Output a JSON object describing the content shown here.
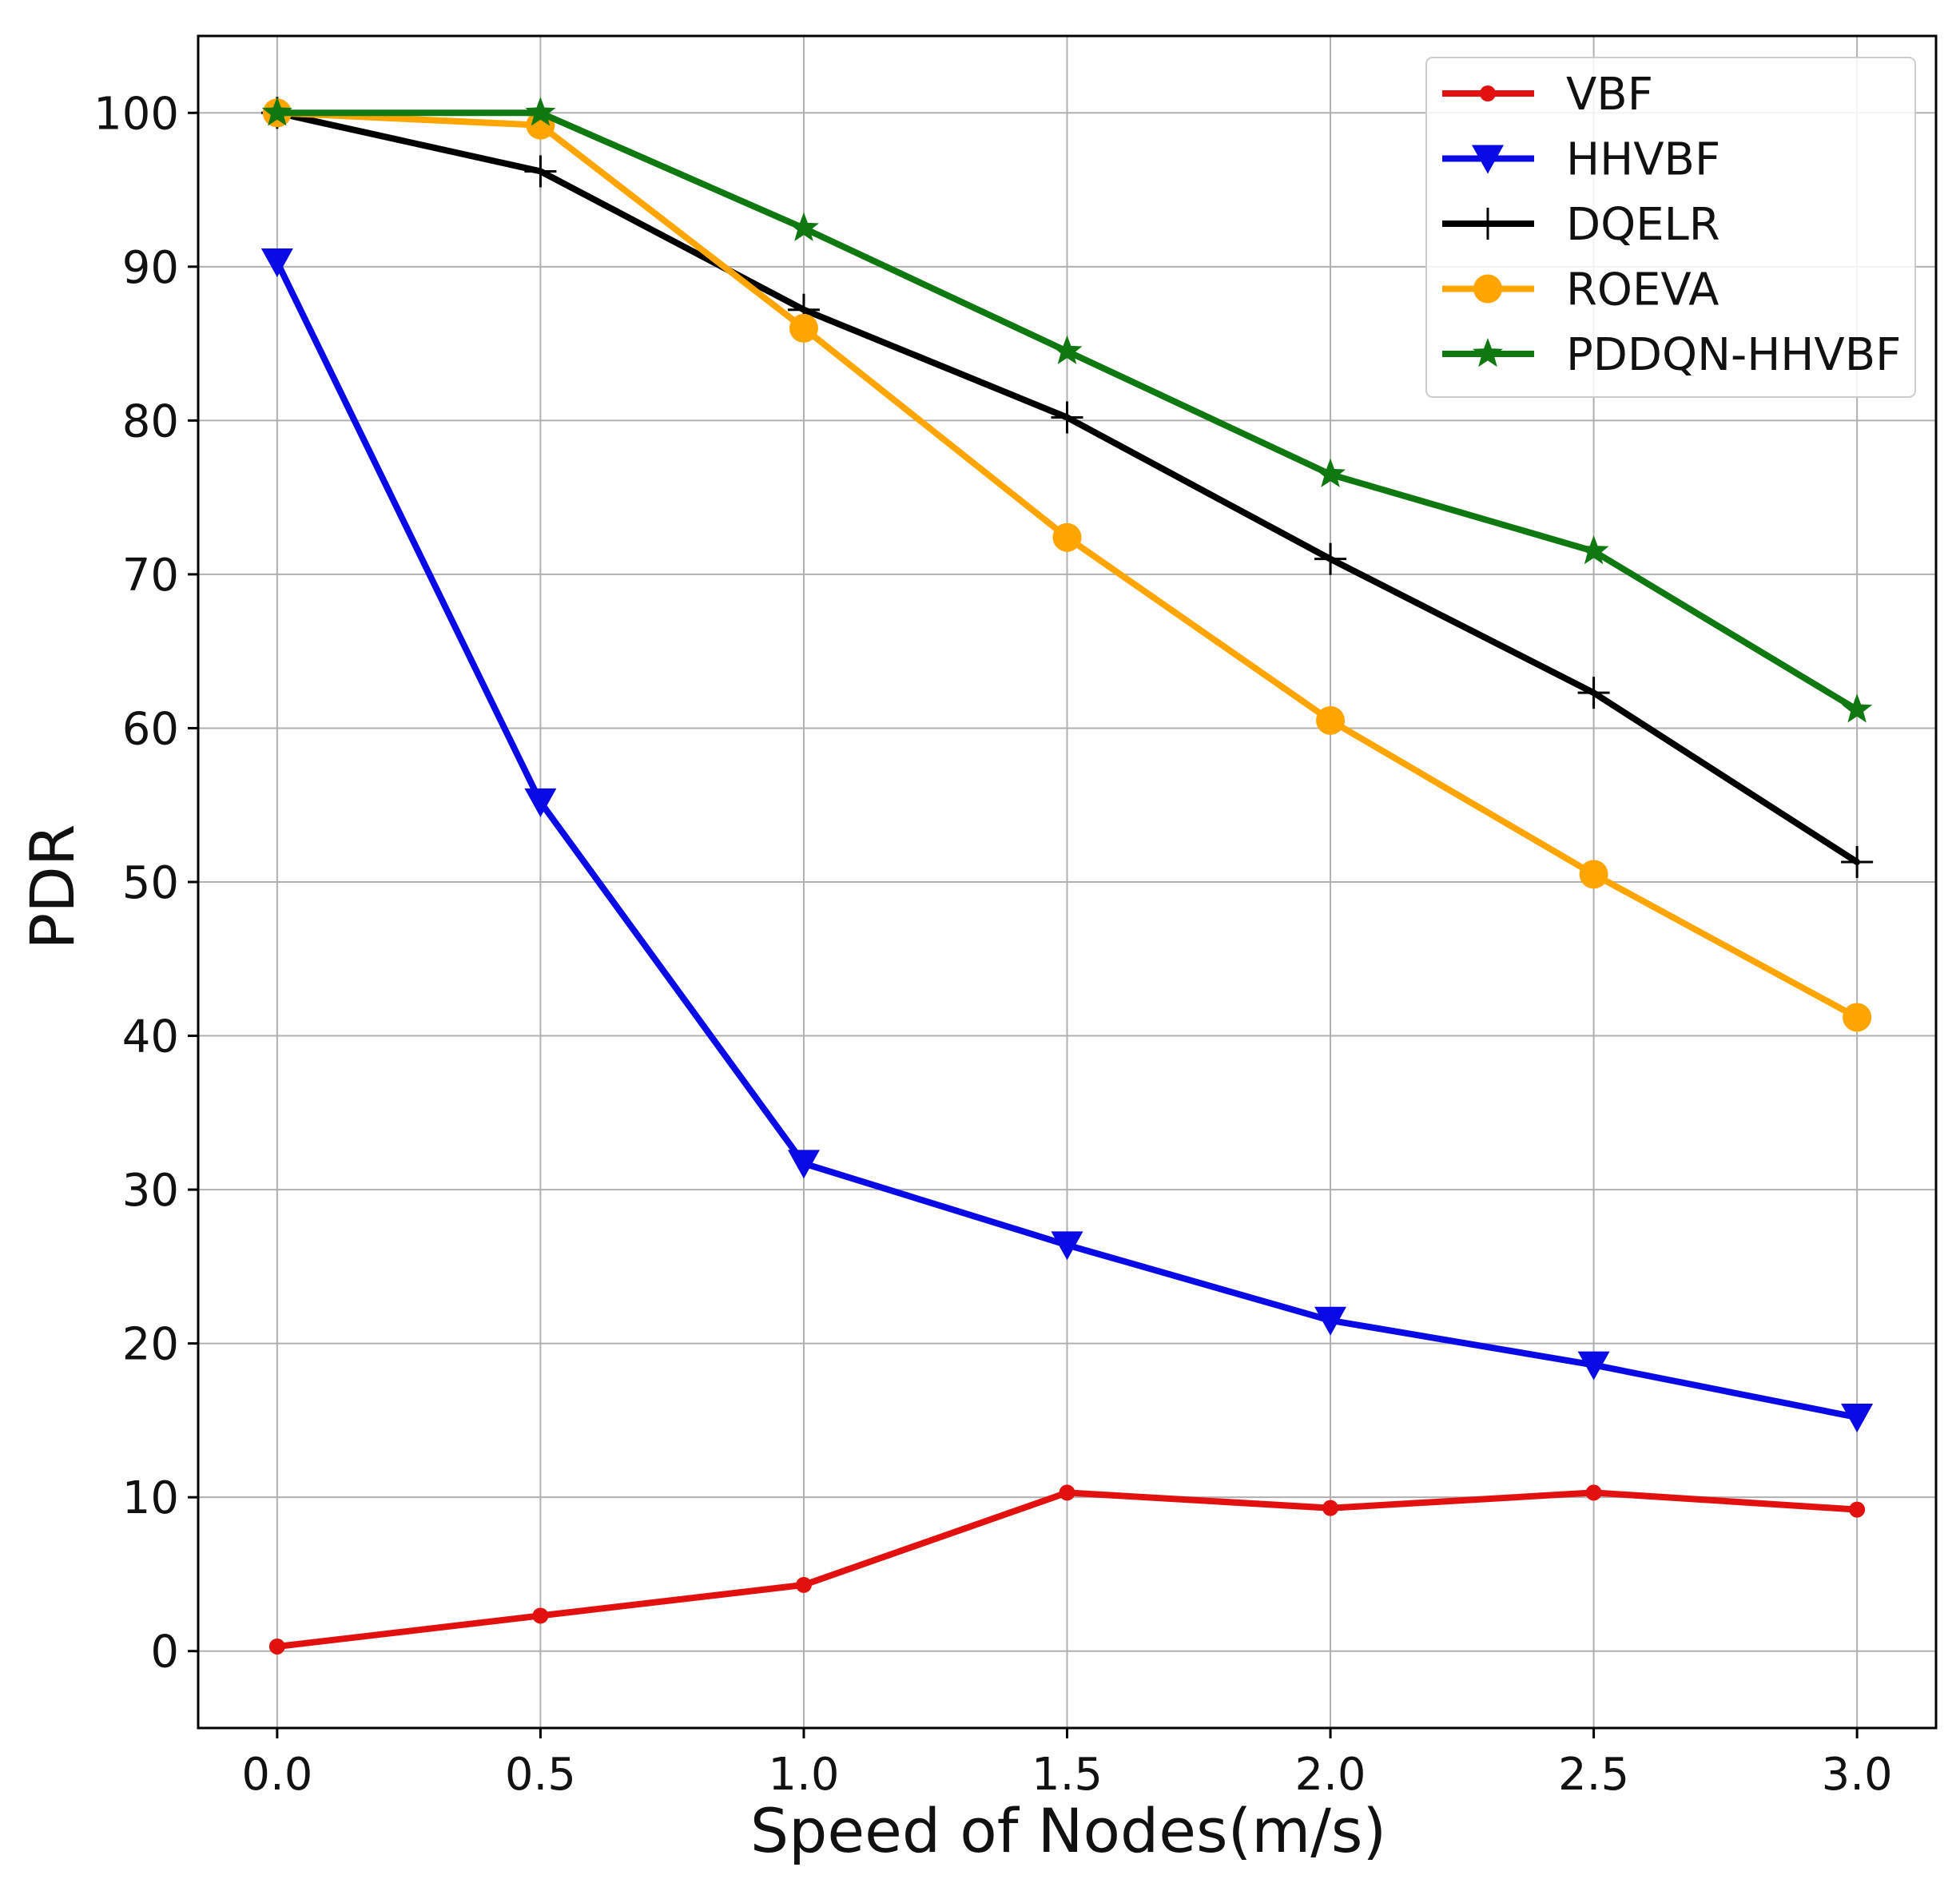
{
  "chart_data": {
    "type": "line",
    "title": "",
    "xlabel": "Speed of Nodes(m/s)",
    "ylabel": "PDR",
    "xlim": [
      -0.15,
      3.15
    ],
    "ylim": [
      -5,
      105
    ],
    "xticks": [
      0.0,
      0.5,
      1.0,
      1.5,
      2.0,
      2.5,
      3.0
    ],
    "xtick_labels": [
      "0.0",
      "0.5",
      "1.0",
      "1.5",
      "2.0",
      "2.5",
      "3.0"
    ],
    "yticks": [
      0,
      10,
      20,
      30,
      40,
      50,
      60,
      70,
      80,
      90,
      100
    ],
    "ytick_labels": [
      "0",
      "10",
      "20",
      "30",
      "40",
      "50",
      "60",
      "70",
      "80",
      "90",
      "100"
    ],
    "grid": true,
    "legend_position": "top-right",
    "x": [
      0.0,
      0.5,
      1.0,
      1.5,
      2.0,
      2.5,
      3.0
    ],
    "series": [
      {
        "name": "VBF",
        "color": "#e31010",
        "marker": "circle-small",
        "values": [
          0.3,
          2.3,
          4.3,
          10.3,
          9.3,
          10.3,
          9.2
        ]
      },
      {
        "name": "HHVBF",
        "color": "#0a0ae6",
        "marker": "triangle-down",
        "values": [
          90.3,
          55.2,
          31.7,
          26.4,
          21.5,
          18.6,
          15.2
        ]
      },
      {
        "name": "DQELR",
        "color": "#000000",
        "marker": "plus",
        "values": [
          100.0,
          96.2,
          87.2,
          80.2,
          71.0,
          62.3,
          51.3
        ]
      },
      {
        "name": "ROEVA",
        "color": "#ffa500",
        "marker": "circle-large",
        "values": [
          100.0,
          99.2,
          86.0,
          72.4,
          60.5,
          50.5,
          41.2
        ]
      },
      {
        "name": "PDDQN-HHVBF",
        "color": "#107810",
        "marker": "star",
        "values": [
          100.0,
          100.0,
          92.5,
          84.5,
          76.5,
          71.5,
          61.2
        ]
      }
    ]
  }
}
